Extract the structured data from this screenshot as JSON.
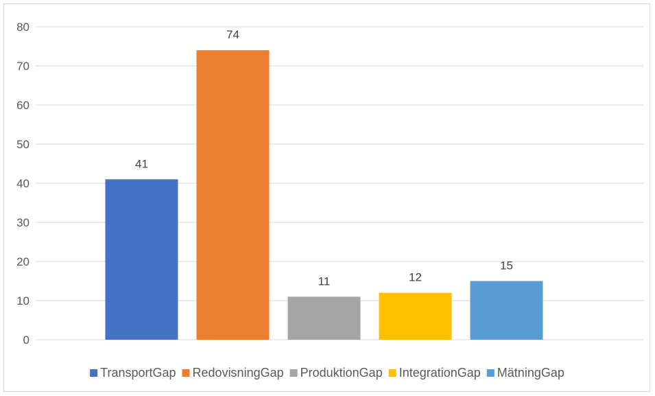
{
  "chart_data": {
    "type": "bar",
    "categories": [
      "TransportGap",
      "RedovisningGap",
      "ProduktionGap",
      "IntegrationGap",
      "MätningGap"
    ],
    "values": [
      41,
      74,
      11,
      12,
      15
    ],
    "colors": [
      "#4472c4",
      "#ed7d31",
      "#a5a5a5",
      "#ffc000",
      "#5b9bd5"
    ],
    "y_ticks": [
      "0",
      "10",
      "20",
      "30",
      "40",
      "50",
      "60",
      "70",
      "80"
    ],
    "ylim": [
      0,
      80
    ],
    "grid": true,
    "data_labels": true,
    "legend_position": "bottom"
  }
}
